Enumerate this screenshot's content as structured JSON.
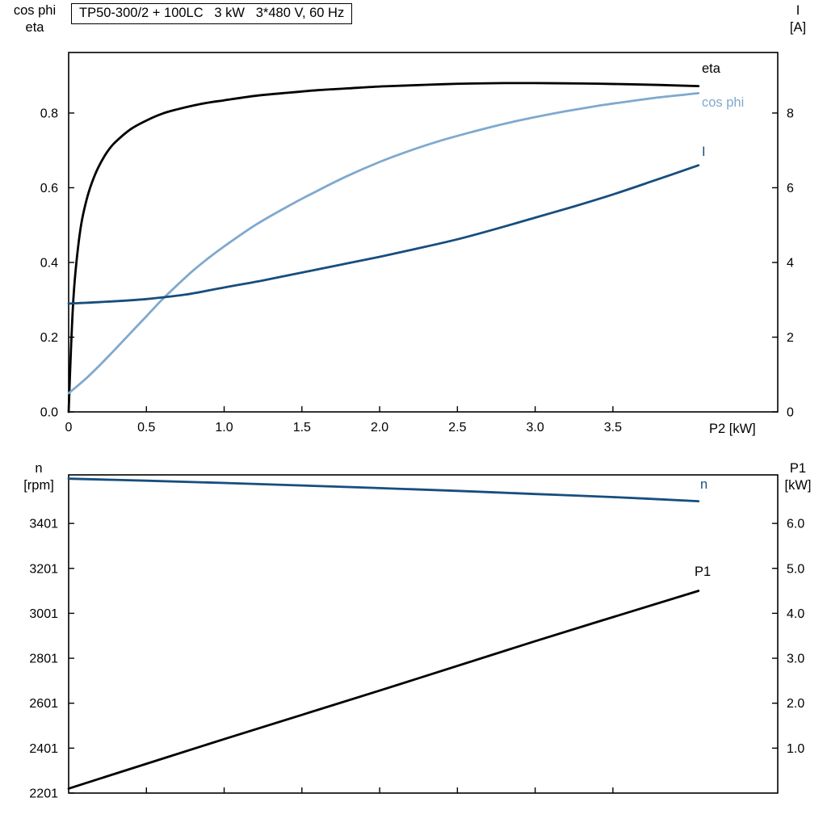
{
  "title": "TP50-300/2 + 100LC   3 kW   3*480 V, 60 Hz",
  "colors": {
    "axis": "#000000",
    "eta": "#000000",
    "cos_phi": "#7fa9ce",
    "current": "#164e7e",
    "speed": "#164e7e",
    "p1": "#000000"
  },
  "chart_data": [
    {
      "type": "line",
      "title": "Motor efficiency, power factor and current vs shaft power",
      "xlabel": "P2 [kW]",
      "left_axis": "cos phi / eta",
      "right_axis": "I [A]",
      "x_range": [
        0,
        4.56
      ],
      "left_range": [
        0,
        0.962
      ],
      "right_range": [
        0,
        9.62
      ],
      "left_header": [
        "cos phi",
        "eta"
      ],
      "right_header": [
        "I",
        "[A]"
      ],
      "x_axis_label": "P2 [kW]",
      "x_ticks": [
        {
          "v": 0,
          "label": "0"
        },
        {
          "v": 0.5,
          "label": "0.5"
        },
        {
          "v": 1.0,
          "label": "1.0"
        },
        {
          "v": 1.5,
          "label": "1.5"
        },
        {
          "v": 2.0,
          "label": "2.0"
        },
        {
          "v": 2.5,
          "label": "2.5"
        },
        {
          "v": 3.0,
          "label": "3.0"
        },
        {
          "v": 3.5,
          "label": "3.5"
        }
      ],
      "left_ticks": [
        {
          "v": 0.0,
          "label": "0.0"
        },
        {
          "v": 0.2,
          "label": "0.2"
        },
        {
          "v": 0.4,
          "label": "0.4"
        },
        {
          "v": 0.6,
          "label": "0.6"
        },
        {
          "v": 0.8,
          "label": "0.8"
        }
      ],
      "right_ticks": [
        {
          "v": 0,
          "label": "0"
        },
        {
          "v": 2,
          "label": "2"
        },
        {
          "v": 4,
          "label": "4"
        },
        {
          "v": 6,
          "label": "6"
        },
        {
          "v": 8,
          "label": "8"
        }
      ],
      "series": [
        {
          "name": "eta",
          "label": "eta",
          "axis": "left",
          "color_key": "eta",
          "points": [
            [
              0,
              0
            ],
            [
              0.015,
              0.17
            ],
            [
              0.03,
              0.3
            ],
            [
              0.05,
              0.4
            ],
            [
              0.08,
              0.5
            ],
            [
              0.12,
              0.575
            ],
            [
              0.16,
              0.625
            ],
            [
              0.2,
              0.662
            ],
            [
              0.25,
              0.697
            ],
            [
              0.3,
              0.722
            ],
            [
              0.4,
              0.757
            ],
            [
              0.5,
              0.78
            ],
            [
              0.6,
              0.798
            ],
            [
              0.7,
              0.81
            ],
            [
              0.8,
              0.82
            ],
            [
              0.9,
              0.828
            ],
            [
              1.0,
              0.834
            ],
            [
              1.2,
              0.846
            ],
            [
              1.4,
              0.854
            ],
            [
              1.6,
              0.861
            ],
            [
              1.8,
              0.866
            ],
            [
              2.0,
              0.871
            ],
            [
              2.2,
              0.874
            ],
            [
              2.4,
              0.877
            ],
            [
              2.6,
              0.879
            ],
            [
              2.8,
              0.88
            ],
            [
              3.0,
              0.88
            ],
            [
              3.3,
              0.879
            ],
            [
              3.6,
              0.877
            ],
            [
              3.8,
              0.875
            ],
            [
              4.05,
              0.872
            ]
          ]
        },
        {
          "name": "cos phi",
          "label": "cos phi",
          "axis": "left",
          "color_key": "cos_phi",
          "points": [
            [
              0,
              0.05
            ],
            [
              0.1,
              0.085
            ],
            [
              0.2,
              0.125
            ],
            [
              0.3,
              0.168
            ],
            [
              0.4,
              0.212
            ],
            [
              0.5,
              0.256
            ],
            [
              0.6,
              0.3
            ],
            [
              0.7,
              0.34
            ],
            [
              0.8,
              0.378
            ],
            [
              0.9,
              0.412
            ],
            [
              1.0,
              0.443
            ],
            [
              1.2,
              0.5
            ],
            [
              1.4,
              0.548
            ],
            [
              1.6,
              0.592
            ],
            [
              1.8,
              0.633
            ],
            [
              2.0,
              0.669
            ],
            [
              2.2,
              0.7
            ],
            [
              2.4,
              0.727
            ],
            [
              2.6,
              0.75
            ],
            [
              2.8,
              0.771
            ],
            [
              3.0,
              0.789
            ],
            [
              3.2,
              0.805
            ],
            [
              3.4,
              0.819
            ],
            [
              3.6,
              0.831
            ],
            [
              3.8,
              0.842
            ],
            [
              4.05,
              0.853
            ]
          ]
        },
        {
          "name": "I",
          "label": "I",
          "axis": "right",
          "color_key": "current",
          "points": [
            [
              0,
              2.9
            ],
            [
              0.25,
              2.95
            ],
            [
              0.5,
              3.02
            ],
            [
              0.75,
              3.14
            ],
            [
              1.0,
              3.33
            ],
            [
              1.25,
              3.52
            ],
            [
              1.5,
              3.73
            ],
            [
              1.75,
              3.94
            ],
            [
              2.0,
              4.15
            ],
            [
              2.25,
              4.38
            ],
            [
              2.5,
              4.62
            ],
            [
              2.75,
              4.9
            ],
            [
              3.0,
              5.2
            ],
            [
              3.25,
              5.5
            ],
            [
              3.5,
              5.82
            ],
            [
              3.75,
              6.17
            ],
            [
              4.05,
              6.6
            ]
          ]
        }
      ]
    },
    {
      "type": "line",
      "title": "Motor speed and input power vs shaft power",
      "xlabel": "P2 [kW]",
      "left_axis": "n [rpm]",
      "right_axis": "P1 [kW]",
      "x_range": [
        0,
        4.56
      ],
      "left_range": [
        2201,
        3617
      ],
      "right_range": [
        0,
        7.08
      ],
      "left_header": [
        "n",
        "[rpm]"
      ],
      "right_header": [
        "P1",
        "[kW]"
      ],
      "x_axis_label": "",
      "x_ticks": [
        {
          "v": 0.5
        },
        {
          "v": 1.0
        },
        {
          "v": 1.5
        },
        {
          "v": 2.0
        },
        {
          "v": 2.5
        },
        {
          "v": 3.0
        },
        {
          "v": 3.5
        }
      ],
      "left_ticks": [
        {
          "v": 2201,
          "label": "2201"
        },
        {
          "v": 2401,
          "label": "2401"
        },
        {
          "v": 2601,
          "label": "2601"
        },
        {
          "v": 2801,
          "label": "2801"
        },
        {
          "v": 3001,
          "label": "3001"
        },
        {
          "v": 3201,
          "label": "3201"
        },
        {
          "v": 3401,
          "label": "3401"
        }
      ],
      "right_ticks": [
        {
          "v": 1.0,
          "label": "1.0"
        },
        {
          "v": 2.0,
          "label": "2.0"
        },
        {
          "v": 3.0,
          "label": "3.0"
        },
        {
          "v": 4.0,
          "label": "4.0"
        },
        {
          "v": 5.0,
          "label": "5.0"
        },
        {
          "v": 6.0,
          "label": "6.0"
        }
      ],
      "series": [
        {
          "name": "n",
          "label": "n",
          "axis": "left",
          "color_key": "speed",
          "points": [
            [
              0,
              3600
            ],
            [
              0.5,
              3591
            ],
            [
              1.0,
              3581
            ],
            [
              1.5,
              3570
            ],
            [
              2.0,
              3558
            ],
            [
              2.5,
              3546
            ],
            [
              3.0,
              3532
            ],
            [
              3.5,
              3518
            ],
            [
              4.05,
              3500
            ]
          ]
        },
        {
          "name": "P1",
          "label": "P1",
          "axis": "right",
          "color_key": "p1",
          "points": [
            [
              0,
              0.1
            ],
            [
              1.0,
              1.2
            ],
            [
              2.0,
              2.28
            ],
            [
              3.0,
              3.38
            ],
            [
              4.05,
              4.5
            ]
          ]
        }
      ]
    }
  ]
}
